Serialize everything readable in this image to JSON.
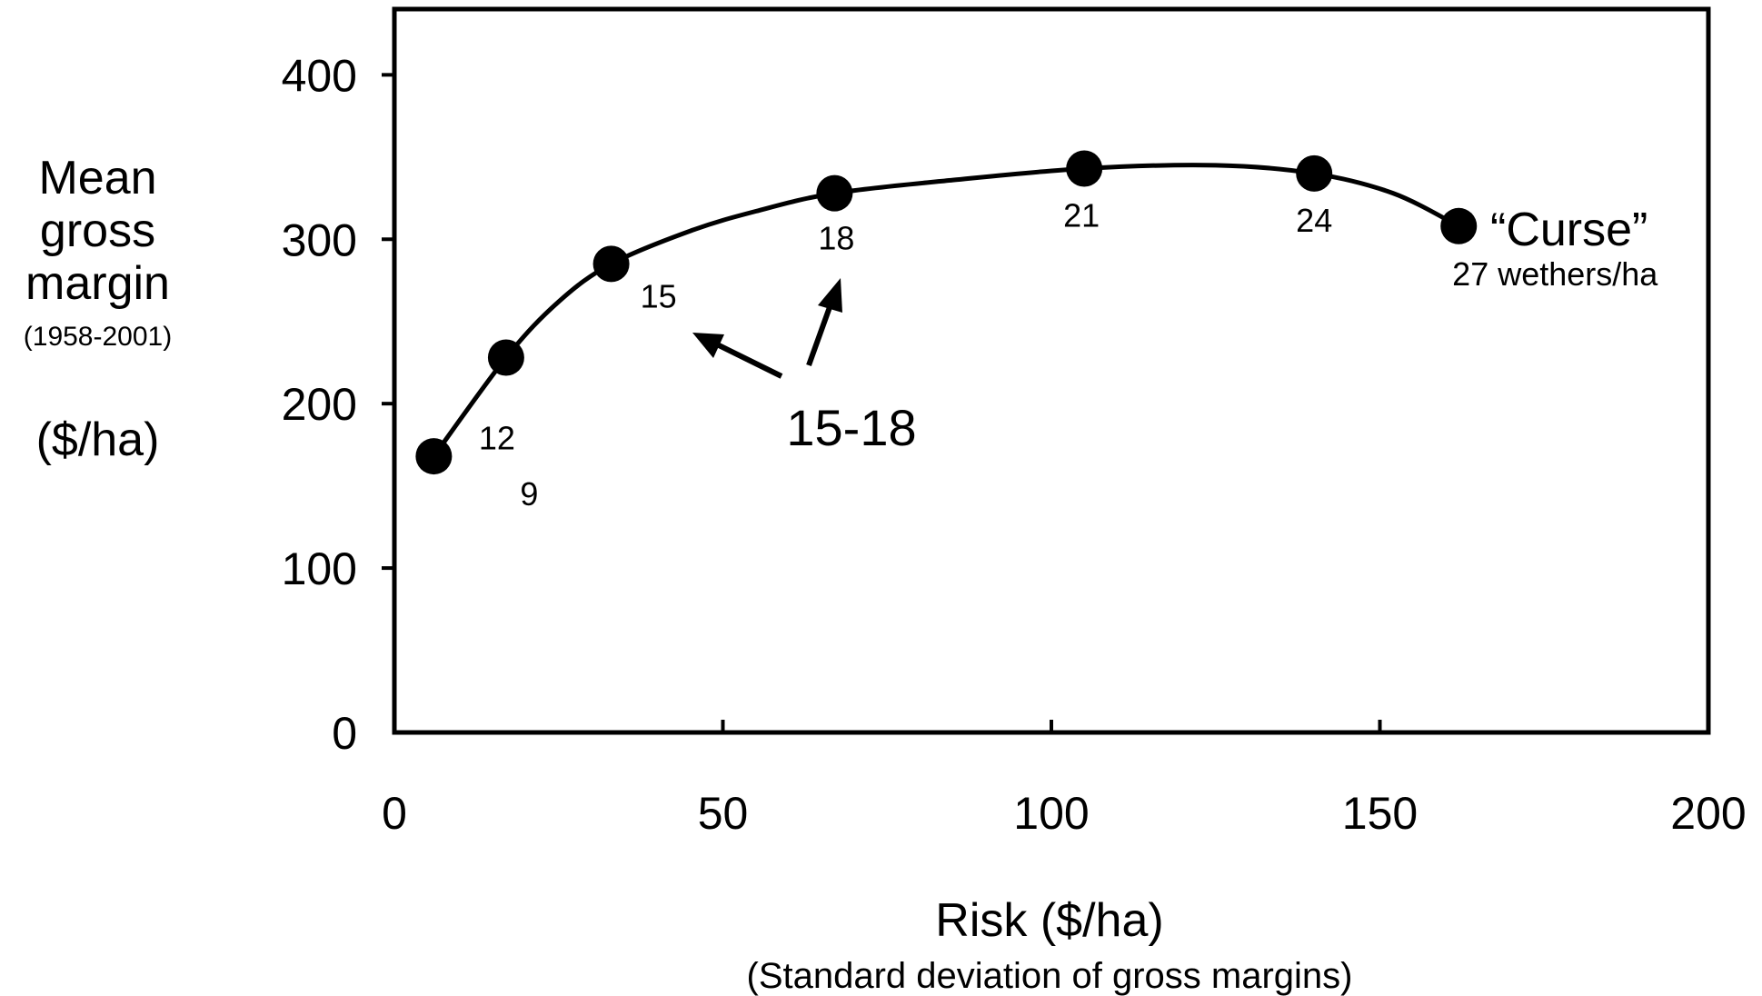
{
  "chart_data": {
    "type": "scatter",
    "y_title_lines": [
      "Mean",
      "gross",
      "margin"
    ],
    "y_title_period": "(1958-2001)",
    "y_title_unit": "($/ha)",
    "xlabel": "Risk  ($/ha)",
    "xlabel_sub": "(Standard deviation of gross margins)",
    "xlim": [
      0,
      200
    ],
    "ylim": [
      0,
      440
    ],
    "x_ticks": [
      0,
      50,
      100,
      150,
      200
    ],
    "y_ticks": [
      0,
      100,
      200,
      300,
      400
    ],
    "grid": false,
    "series": [
      {
        "points": [
          {
            "x": 6,
            "y": 168,
            "label": "9"
          },
          {
            "x": 17,
            "y": 228,
            "label": "12"
          },
          {
            "x": 33,
            "y": 285,
            "label": "15"
          },
          {
            "x": 67,
            "y": 328,
            "label": "18"
          },
          {
            "x": 105,
            "y": 343,
            "label": "21"
          },
          {
            "x": 140,
            "y": 340,
            "label": "24"
          },
          {
            "x": 162,
            "y": 308,
            "label": "27 wethers/ha"
          }
        ],
        "curve": [
          [
            6,
            168
          ],
          [
            17,
            228
          ],
          [
            25,
            262
          ],
          [
            33,
            285
          ],
          [
            45,
            305
          ],
          [
            55,
            317
          ],
          [
            67,
            328
          ],
          [
            85,
            336
          ],
          [
            105,
            343
          ],
          [
            125,
            345
          ],
          [
            140,
            340
          ],
          [
            152,
            328
          ],
          [
            162,
            308
          ]
        ]
      }
    ],
    "annotations": {
      "curse": "“Curse”",
      "range_label": "15-18"
    }
  }
}
